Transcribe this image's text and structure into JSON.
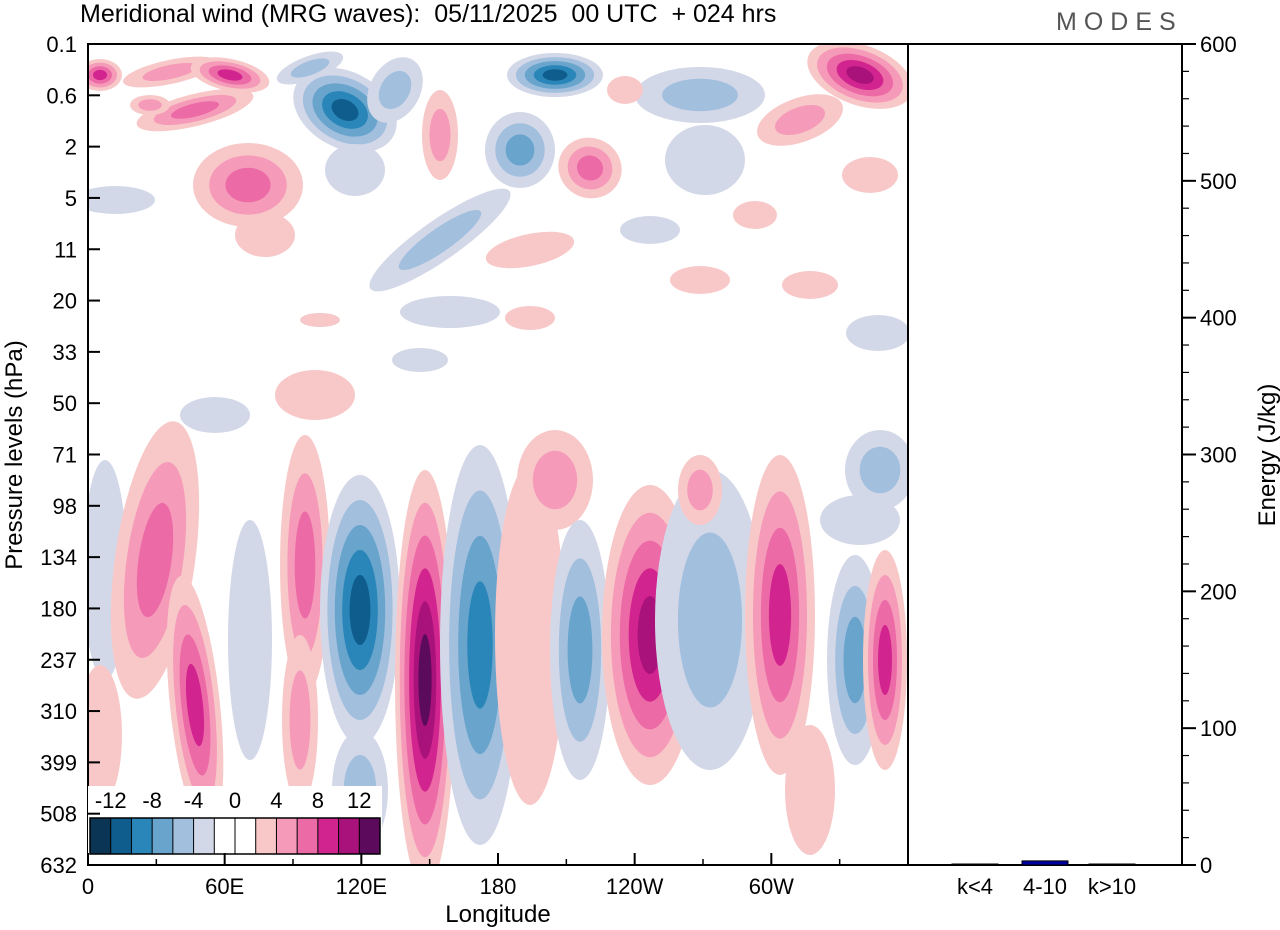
{
  "header": {
    "title": "Meridional wind (MRG waves):  05/11/2025  00 UTC  + 024 hrs",
    "brand": "MODES"
  },
  "chart_data": [
    {
      "type": "heatmap",
      "title": "Meridional wind (MRG waves):  05/11/2025  00 UTC  + 024 hrs",
      "xlabel": "Longitude",
      "ylabel": "Pressure levels (hPa)",
      "x_ticks": [
        "0",
        "60E",
        "120E",
        "180",
        "120W",
        "60W"
      ],
      "x_tick_degrees": [
        0,
        60,
        120,
        180,
        240,
        300
      ],
      "x_range": [
        0,
        360
      ],
      "y_ticks": [
        "0.1",
        "0.6",
        "2",
        "5",
        "11",
        "20",
        "33",
        "50",
        "71",
        "98",
        "134",
        "180",
        "237",
        "310",
        "399",
        "508",
        "632"
      ],
      "colorbar": {
        "labels": [
          "-12",
          "-8",
          "-4",
          "0",
          "4",
          "8",
          "12"
        ],
        "levels": [
          -14,
          -12,
          -10,
          -8,
          -6,
          -4,
          -2,
          2,
          4,
          6,
          8,
          10,
          12,
          14
        ],
        "colors": [
          "#0a3554",
          "#0e5d8c",
          "#2a86b8",
          "#68a4cc",
          "#a2bfde",
          "#d3d8e8",
          "#ffffff",
          "#ffffff",
          "#f8c8c8",
          "#f59ab9",
          "#ec6aa6",
          "#d2248f",
          "#a8127a",
          "#5c0a5c"
        ]
      }
    },
    {
      "type": "bar",
      "ylabel": "Energy (J/kg)",
      "ylim": [
        0,
        600
      ],
      "y_ticks": [
        "0",
        "100",
        "200",
        "300",
        "400",
        "500",
        "600"
      ],
      "categories": [
        "k<4",
        "4-10",
        "k>10"
      ],
      "values": [
        0.5,
        3,
        0.5
      ],
      "bar_color": "#0000a0"
    }
  ]
}
